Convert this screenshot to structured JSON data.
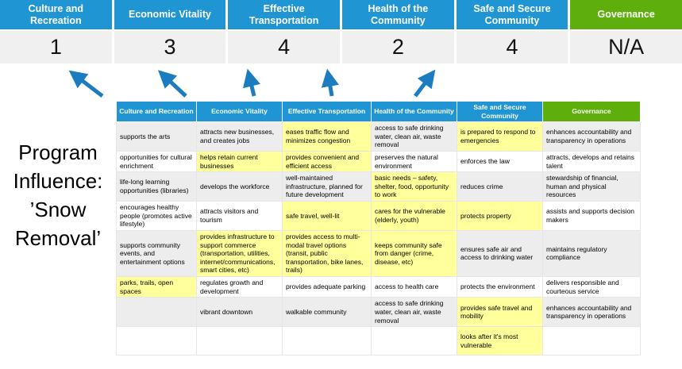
{
  "colors": {
    "header_blue": "#2095D3",
    "header_green": "#5FAF0C",
    "score_row_bg": "#F0F0F0",
    "row_alt_bg": "#EDEDED",
    "highlight": "#FFFF9C",
    "arrow_blue": "#1C7CC0"
  },
  "program_title": {
    "text": "Program Influence: ’Snow Removal’",
    "lines": [
      "Program",
      "Influence:",
      "’Snow",
      "Removal’"
    ]
  },
  "top": {
    "columns": [
      {
        "label": "Culture and Recreation",
        "score": "1",
        "theme": "blue"
      },
      {
        "label": "Economic Vitality",
        "score": "3",
        "theme": "blue"
      },
      {
        "label": "Effective Transportation",
        "score": "4",
        "theme": "blue"
      },
      {
        "label": "Health of the Community",
        "score": "2",
        "theme": "blue"
      },
      {
        "label": "Safe and Secure Community",
        "score": "4",
        "theme": "blue"
      },
      {
        "label": "Governance",
        "score": "N/A",
        "theme": "green"
      }
    ]
  },
  "table": {
    "headers": [
      {
        "label": "Culture and Recreation",
        "theme": "blue"
      },
      {
        "label": "Economic Vitality",
        "theme": "blue"
      },
      {
        "label": "Effective Transportation",
        "theme": "blue"
      },
      {
        "label": "Health of the Community",
        "theme": "blue"
      },
      {
        "label": "Safe and Secure Community",
        "theme": "blue"
      },
      {
        "label": "Governance",
        "theme": "green"
      }
    ],
    "rows": [
      [
        {
          "text": "supports the arts",
          "hl": false
        },
        {
          "text": "attracts new businesses, and creates jobs",
          "hl": false
        },
        {
          "text": "eases traffic flow and minimizes congestion",
          "hl": true
        },
        {
          "text": "access to safe drinking water, clean air, waste removal",
          "hl": false
        },
        {
          "text": "is prepared to respond to emergencies",
          "hl": true
        },
        {
          "text": "enhances accountability and transparency in operations",
          "hl": false
        }
      ],
      [
        {
          "text": "opportunities for cultural enrichment",
          "hl": false
        },
        {
          "text": "helps retain current businesses",
          "hl": true
        },
        {
          "text": "provides convenient and efficient access",
          "hl": true
        },
        {
          "text": "preserves the natural environment",
          "hl": false
        },
        {
          "text": "enforces the law",
          "hl": false
        },
        {
          "text": "attracts, develops and retains talent",
          "hl": false
        }
      ],
      [
        {
          "text": "life-long learning opportunities (libraries)",
          "hl": false
        },
        {
          "text": "develops the workforce",
          "hl": false
        },
        {
          "text": "well-maintained infrastructure, planned for future development",
          "hl": false
        },
        {
          "text": "basic needs – safety, shelter, food, opportunity to work",
          "hl": true
        },
        {
          "text": "reduces crime",
          "hl": false
        },
        {
          "text": "stewardship of financial, human and physical resources",
          "hl": false
        }
      ],
      [
        {
          "text": "encourages healthy people (promotes active lifestyle)",
          "hl": false
        },
        {
          "text": "attracts visitors and tourism",
          "hl": false
        },
        {
          "text": "safe travel, well-lit",
          "hl": true
        },
        {
          "text": "cares for the vulnerable (elderly, youth)",
          "hl": true
        },
        {
          "text": "protects property",
          "hl": true
        },
        {
          "text": "assists and supports decision makers",
          "hl": false
        }
      ],
      [
        {
          "text": "supports community events, and entertainment options",
          "hl": false
        },
        {
          "text": "provides infrastructure to support commerce (transportation, utilities, internet/communications, smart cities, etc)",
          "hl": true
        },
        {
          "text": "provides access to multi-modal travel options (transit, public transportation, bike lanes, trails)",
          "hl": true
        },
        {
          "text": "keeps community safe from danger (crime, disease, etc)",
          "hl": true
        },
        {
          "text": "ensures safe air and access to drinking water",
          "hl": false
        },
        {
          "text": "maintains regulatory compliance",
          "hl": false
        }
      ],
      [
        {
          "text": "parks, trails, open spaces",
          "hl": true
        },
        {
          "text": "regulates growth and development",
          "hl": false
        },
        {
          "text": "provides adequate parking",
          "hl": false
        },
        {
          "text": "access to health care",
          "hl": false
        },
        {
          "text": "protects the environment",
          "hl": false
        },
        {
          "text": "delivers responsible and courteous service",
          "hl": false
        }
      ],
      [
        {
          "text": "",
          "hl": false
        },
        {
          "text": "vibrant downtown",
          "hl": false
        },
        {
          "text": "walkable community",
          "hl": false
        },
        {
          "text": "access to safe drinking water, clean air, waste removal",
          "hl": false
        },
        {
          "text": "provides safe travel and mobility",
          "hl": true
        },
        {
          "text": "enhances accountability and transparency in operations",
          "hl": false
        }
      ],
      [
        {
          "text": "",
          "hl": false
        },
        {
          "text": "",
          "hl": false
        },
        {
          "text": "",
          "hl": false
        },
        {
          "text": "",
          "hl": false
        },
        {
          "text": "looks after it's most vulnerable",
          "hl": true
        },
        {
          "text": "",
          "hl": false
        }
      ]
    ]
  }
}
